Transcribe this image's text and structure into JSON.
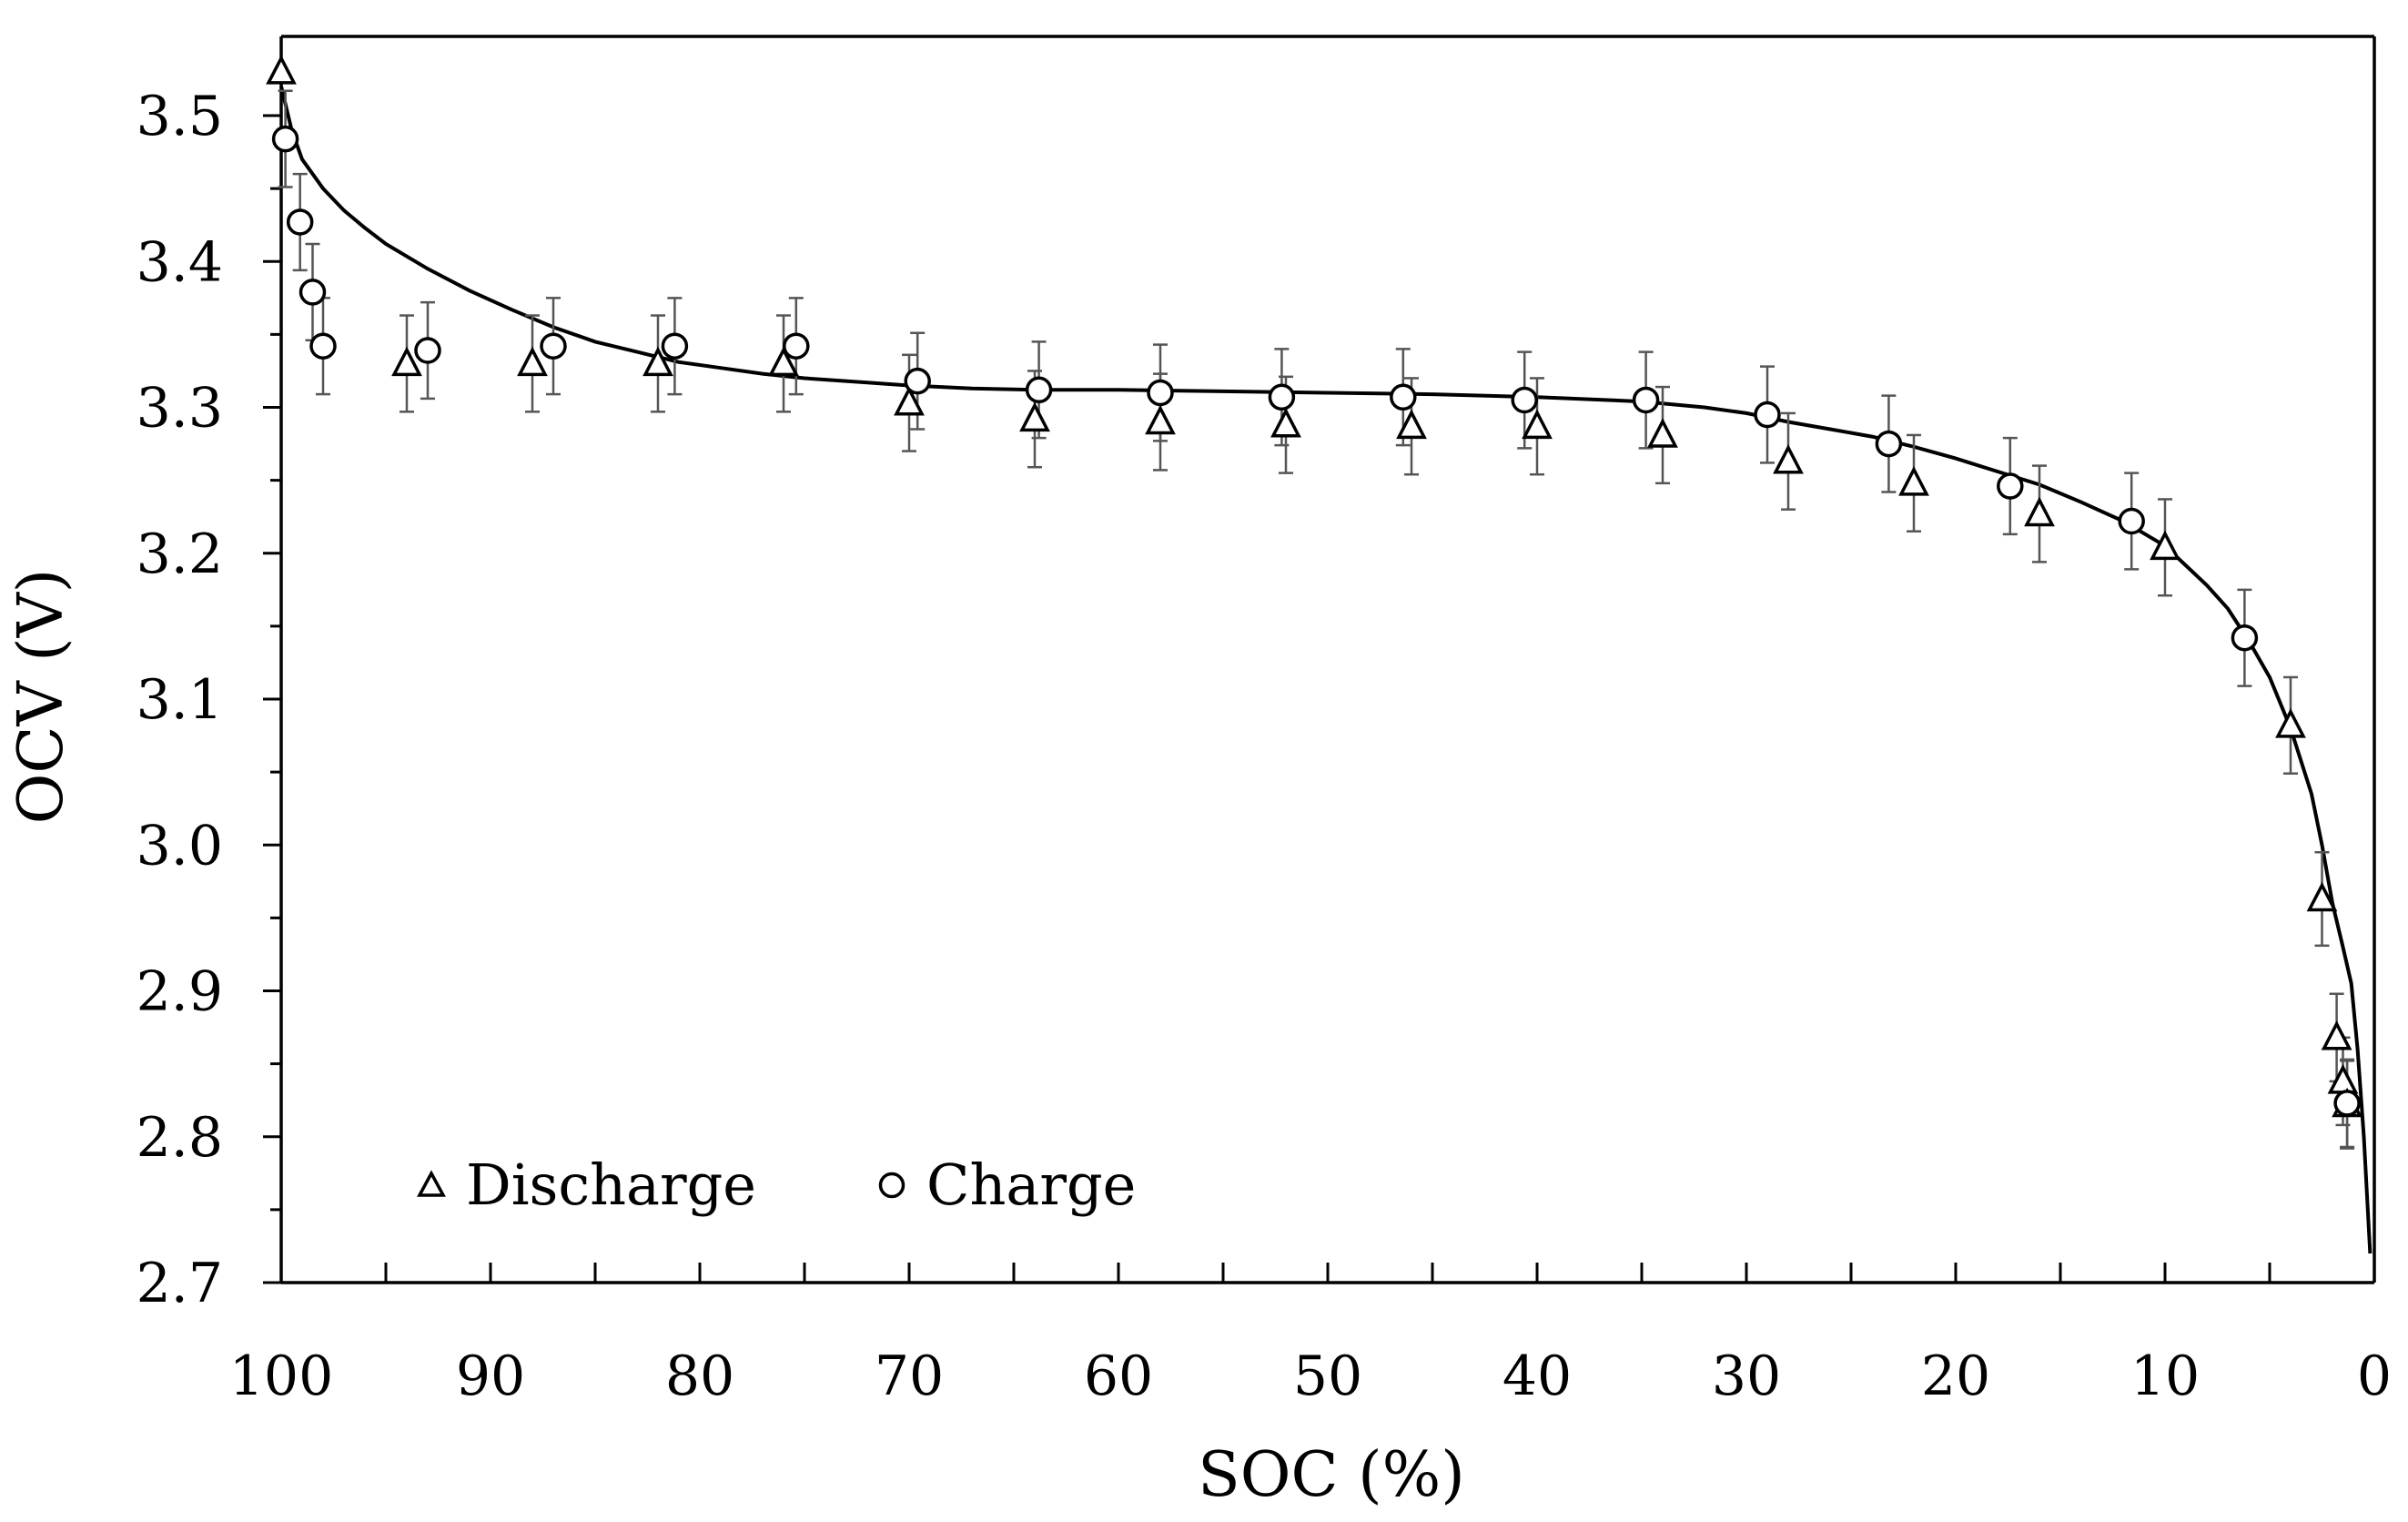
{
  "chart_data": {
    "type": "scatter",
    "title": "",
    "xlabel": "SOC (%)",
    "ylabel": "OCV (V)",
    "xlim": [
      100,
      0
    ],
    "ylim": [
      2.7,
      3.55
    ],
    "x_reversed": true,
    "x_ticks": [
      100,
      90,
      80,
      70,
      60,
      50,
      40,
      30,
      20,
      10,
      0
    ],
    "x_tick_labels": [
      "100",
      "90",
      "80",
      "70",
      "60",
      "50",
      "40",
      "30",
      "20",
      "10",
      "0"
    ],
    "x_minor_ticks": [
      95,
      85,
      75,
      65,
      55,
      45,
      35,
      25,
      15,
      5
    ],
    "y_ticks": [
      2.7,
      2.8,
      2.9,
      3.0,
      3.1,
      3.2,
      3.3,
      3.4,
      3.5
    ],
    "y_tick_labels": [
      "2.7",
      "2.8",
      "2.9",
      "3.0",
      "3.1",
      "3.2",
      "3.3",
      "3.4",
      "3.5"
    ],
    "y_minor_ticks": [
      2.75,
      2.85,
      2.95,
      3.05,
      3.15,
      3.25,
      3.35,
      3.45
    ],
    "grid": false,
    "legend_position": "bottom-left",
    "series": [
      {
        "name": "Discharge",
        "marker": "triangle",
        "points": [
          {
            "x": 100.0,
            "y": 3.53,
            "err": 0.0
          },
          {
            "x": 94.0,
            "y": 3.33,
            "err": 0.033
          },
          {
            "x": 88.0,
            "y": 3.33,
            "err": 0.033
          },
          {
            "x": 82.0,
            "y": 3.33,
            "err": 0.033
          },
          {
            "x": 76.0,
            "y": 3.33,
            "err": 0.033
          },
          {
            "x": 70.0,
            "y": 3.303,
            "err": 0.033
          },
          {
            "x": 64.0,
            "y": 3.292,
            "err": 0.033
          },
          {
            "x": 58.0,
            "y": 3.29,
            "err": 0.033
          },
          {
            "x": 52.0,
            "y": 3.288,
            "err": 0.033
          },
          {
            "x": 46.0,
            "y": 3.287,
            "err": 0.033
          },
          {
            "x": 40.0,
            "y": 3.287,
            "err": 0.033
          },
          {
            "x": 34.0,
            "y": 3.281,
            "err": 0.033
          },
          {
            "x": 28.0,
            "y": 3.263,
            "err": 0.033
          },
          {
            "x": 22.0,
            "y": 3.248,
            "err": 0.033
          },
          {
            "x": 16.0,
            "y": 3.227,
            "err": 0.033
          },
          {
            "x": 10.0,
            "y": 3.204,
            "err": 0.033
          },
          {
            "x": 4.0,
            "y": 3.082,
            "err": 0.033
          },
          {
            "x": 2.5,
            "y": 2.963,
            "err": 0.032
          },
          {
            "x": 1.8,
            "y": 2.868,
            "err": 0.03
          },
          {
            "x": 1.5,
            "y": 2.838,
            "err": 0.03
          },
          {
            "x": 1.3,
            "y": 2.822,
            "err": 0.03
          }
        ]
      },
      {
        "name": "Charge",
        "marker": "circle",
        "points": [
          {
            "x": 99.8,
            "y": 3.484,
            "err": 0.033
          },
          {
            "x": 99.1,
            "y": 3.427,
            "err": 0.033
          },
          {
            "x": 98.5,
            "y": 3.379,
            "err": 0.033
          },
          {
            "x": 98.0,
            "y": 3.342,
            "err": 0.033
          },
          {
            "x": 93.0,
            "y": 3.339,
            "err": 0.033
          },
          {
            "x": 87.0,
            "y": 3.342,
            "err": 0.033
          },
          {
            "x": 81.2,
            "y": 3.342,
            "err": 0.033
          },
          {
            "x": 75.4,
            "y": 3.342,
            "err": 0.033
          },
          {
            "x": 69.6,
            "y": 3.318,
            "err": 0.033
          },
          {
            "x": 63.8,
            "y": 3.312,
            "err": 0.033
          },
          {
            "x": 58.0,
            "y": 3.31,
            "err": 0.033
          },
          {
            "x": 52.2,
            "y": 3.307,
            "err": 0.033
          },
          {
            "x": 46.4,
            "y": 3.307,
            "err": 0.033
          },
          {
            "x": 40.6,
            "y": 3.305,
            "err": 0.033
          },
          {
            "x": 34.8,
            "y": 3.305,
            "err": 0.033
          },
          {
            "x": 29.0,
            "y": 3.295,
            "err": 0.033
          },
          {
            "x": 23.2,
            "y": 3.275,
            "err": 0.033
          },
          {
            "x": 17.4,
            "y": 3.246,
            "err": 0.033
          },
          {
            "x": 11.6,
            "y": 3.222,
            "err": 0.033
          },
          {
            "x": 6.2,
            "y": 3.142,
            "err": 0.033
          },
          {
            "x": 1.3,
            "y": 2.823,
            "err": 0.03
          }
        ]
      }
    ],
    "fit_curve": {
      "points": [
        [
          100,
          3.52
        ],
        [
          99.5,
          3.49
        ],
        [
          99,
          3.47
        ],
        [
          98,
          3.45
        ],
        [
          97,
          3.435
        ],
        [
          96,
          3.423
        ],
        [
          95,
          3.412
        ],
        [
          93,
          3.395
        ],
        [
          91,
          3.38
        ],
        [
          89,
          3.367
        ],
        [
          87,
          3.355
        ],
        [
          85,
          3.345
        ],
        [
          83,
          3.338
        ],
        [
          81,
          3.331
        ],
        [
          79,
          3.327
        ],
        [
          77,
          3.323
        ],
        [
          75,
          3.32
        ],
        [
          72,
          3.317
        ],
        [
          70,
          3.315
        ],
        [
          67,
          3.313
        ],
        [
          64,
          3.312
        ],
        [
          60,
          3.312
        ],
        [
          55,
          3.311
        ],
        [
          50,
          3.31
        ],
        [
          45,
          3.309
        ],
        [
          40,
          3.307
        ],
        [
          35,
          3.304
        ],
        [
          32,
          3.3
        ],
        [
          30,
          3.296
        ],
        [
          28,
          3.29
        ],
        [
          26,
          3.285
        ],
        [
          24,
          3.28
        ],
        [
          22,
          3.273
        ],
        [
          20,
          3.265
        ],
        [
          18,
          3.256
        ],
        [
          16,
          3.247
        ],
        [
          14,
          3.235
        ],
        [
          12,
          3.222
        ],
        [
          10,
          3.205
        ],
        [
          8,
          3.178
        ],
        [
          7,
          3.162
        ],
        [
          6,
          3.14
        ],
        [
          5,
          3.115
        ],
        [
          4,
          3.08
        ],
        [
          3,
          3.035
        ],
        [
          2.5,
          3.0
        ],
        [
          2,
          2.96
        ],
        [
          1.5,
          2.93
        ],
        [
          1.1,
          2.905
        ],
        [
          0.8,
          2.86
        ],
        [
          0.5,
          2.8
        ],
        [
          0.2,
          2.72
        ]
      ]
    }
  }
}
